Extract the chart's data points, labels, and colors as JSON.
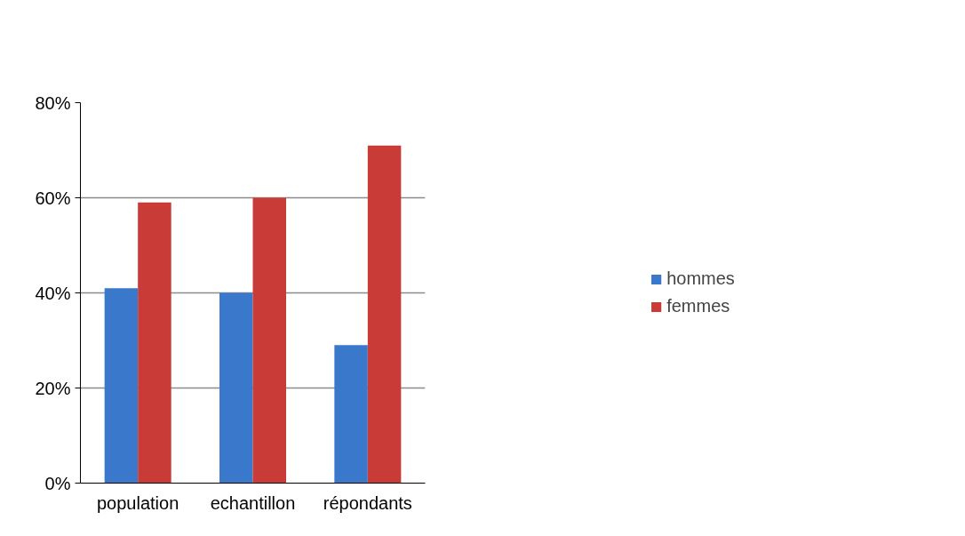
{
  "chart_data": {
    "type": "bar",
    "categories": [
      "population",
      "echantillon",
      "répondants"
    ],
    "series": [
      {
        "name": "hommes",
        "color": "#3a78cc",
        "values": [
          41,
          40,
          29
        ]
      },
      {
        "name": "femmes",
        "color": "#c83b36",
        "values": [
          59,
          60,
          71
        ]
      }
    ],
    "ylim": [
      0,
      80
    ],
    "yticks": [
      {
        "value": 0,
        "label": "0%"
      },
      {
        "value": 20,
        "label": "20%"
      },
      {
        "value": 40,
        "label": "40%"
      },
      {
        "value": 60,
        "label": "60%"
      },
      {
        "value": 80,
        "label": "80%"
      }
    ],
    "grid": "y",
    "legend": "right"
  }
}
